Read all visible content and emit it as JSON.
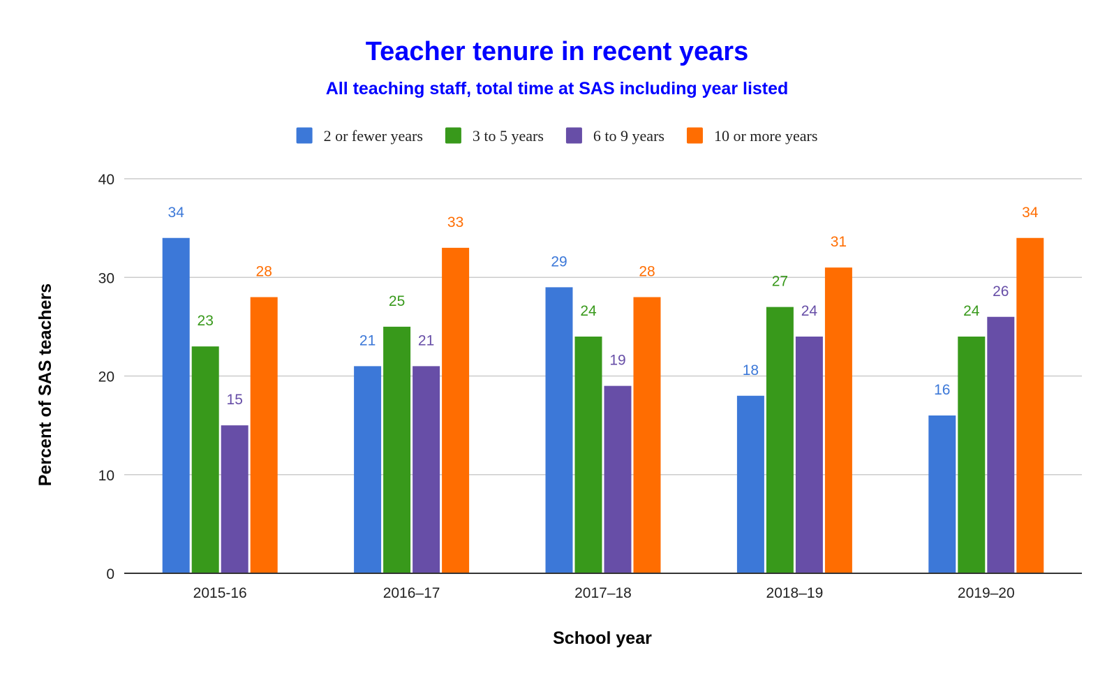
{
  "chart_data": {
    "type": "bar",
    "title": "Teacher tenure in recent years",
    "subtitle": "All teaching staff, total time at SAS including year listed",
    "xlabel": "School year",
    "ylabel": "Percent of SAS teachers",
    "categories": [
      "2015-16",
      "2016–17",
      "2017–18",
      "2018–19",
      "2019–20"
    ],
    "series": [
      {
        "name": "2 or fewer years",
        "color": "#3c78d8",
        "values": [
          34,
          21,
          29,
          18,
          16
        ]
      },
      {
        "name": "3 to 5 years",
        "color": "#38991b",
        "values": [
          23,
          25,
          24,
          27,
          24
        ]
      },
      {
        "name": "6 to 9 years",
        "color": "#674ea7",
        "values": [
          15,
          21,
          19,
          24,
          26
        ]
      },
      {
        "name": "10 or more years",
        "color": "#ff6d01",
        "values": [
          28,
          33,
          28,
          31,
          34
        ]
      }
    ],
    "ylim": [
      0,
      40
    ],
    "yticks": [
      0,
      10,
      20,
      30,
      40
    ],
    "grid": true,
    "legend_position": "top",
    "title_color": "#0000ff"
  }
}
